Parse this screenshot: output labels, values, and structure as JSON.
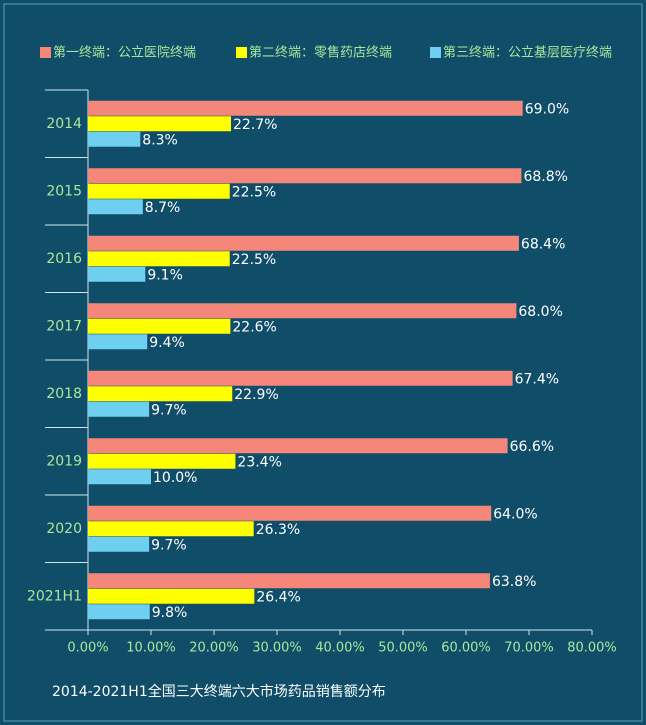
{
  "chart_data": {
    "type": "hbar",
    "caption": "2014-2021H1全国三大终端六大市场药品销售额分布",
    "categories": [
      "2014",
      "2015",
      "2016",
      "2017",
      "2018",
      "2019",
      "2020",
      "2021H1"
    ],
    "series": [
      {
        "name": "第一终端：公立医院终端",
        "color": "#f4877a",
        "values": [
          69.0,
          68.8,
          68.4,
          68.0,
          67.4,
          66.6,
          64.0,
          63.8
        ],
        "value_labels": [
          "69.0%",
          "68.8%",
          "68.4%",
          "68.0%",
          "67.4%",
          "66.6%",
          "64.0%",
          "63.8%"
        ]
      },
      {
        "name": "第二终端：零售药店终端",
        "color": "#ffff00",
        "values": [
          22.7,
          22.5,
          22.5,
          22.6,
          22.9,
          23.4,
          26.3,
          26.4
        ],
        "value_labels": [
          "22.7%",
          "22.5%",
          "22.5%",
          "22.6%",
          "22.9%",
          "23.4%",
          "26.3%",
          "26.4%"
        ]
      },
      {
        "name": "第三终端：公立基层医疗终端",
        "color": "#6fcff0",
        "values": [
          8.3,
          8.7,
          9.1,
          9.4,
          9.7,
          10.0,
          9.7,
          9.8
        ],
        "value_labels": [
          "8.3%",
          "8.7%",
          "9.1%",
          "9.4%",
          "9.7%",
          "10.0%",
          "9.7%",
          "9.8%"
        ]
      }
    ],
    "xlim": [
      0,
      80
    ],
    "xticks": [
      {
        "value": 0,
        "label": "0.00%"
      },
      {
        "value": 10,
        "label": "10.00%"
      },
      {
        "value": 20,
        "label": "20.00%"
      },
      {
        "value": 30,
        "label": "30.00%"
      },
      {
        "value": 40,
        "label": "40.00%"
      },
      {
        "value": 50,
        "label": "50.00%"
      },
      {
        "value": 60,
        "label": "60.00%"
      },
      {
        "value": 70,
        "label": "70.00%"
      },
      {
        "value": 80,
        "label": "80.00%"
      }
    ]
  }
}
